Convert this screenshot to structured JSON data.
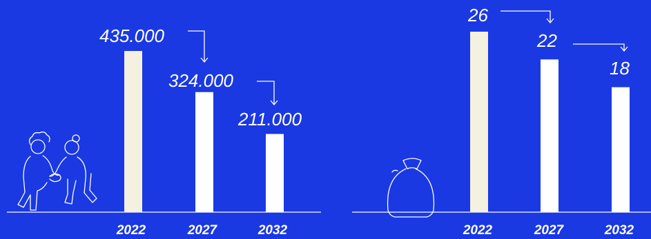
{
  "colors": {
    "background": "#1a39e2",
    "bar_highlight": "#f4f1e1",
    "bar_default": "#ffffff",
    "line": "#ffffff"
  },
  "icons": [
    "two-people-icon",
    "money-bag-icon"
  ],
  "chart_data": [
    {
      "type": "bar",
      "categories": [
        "2022",
        "2027",
        "2032"
      ],
      "values": [
        435000,
        324000,
        211000
      ],
      "labels": [
        "435.000",
        "324.000",
        "211.000"
      ],
      "title": "",
      "xlabel": "",
      "ylabel": "",
      "ylim": [
        0,
        500000
      ],
      "grid": false,
      "icon": "two-people-icon"
    },
    {
      "type": "bar",
      "categories": [
        "2022",
        "2027",
        "2032"
      ],
      "values": [
        26,
        22,
        18
      ],
      "labels": [
        "26",
        "22",
        "18"
      ],
      "title": "",
      "xlabel": "",
      "ylabel": "",
      "ylim": [
        0,
        30
      ],
      "grid": false,
      "icon": "money-bag-icon"
    }
  ]
}
